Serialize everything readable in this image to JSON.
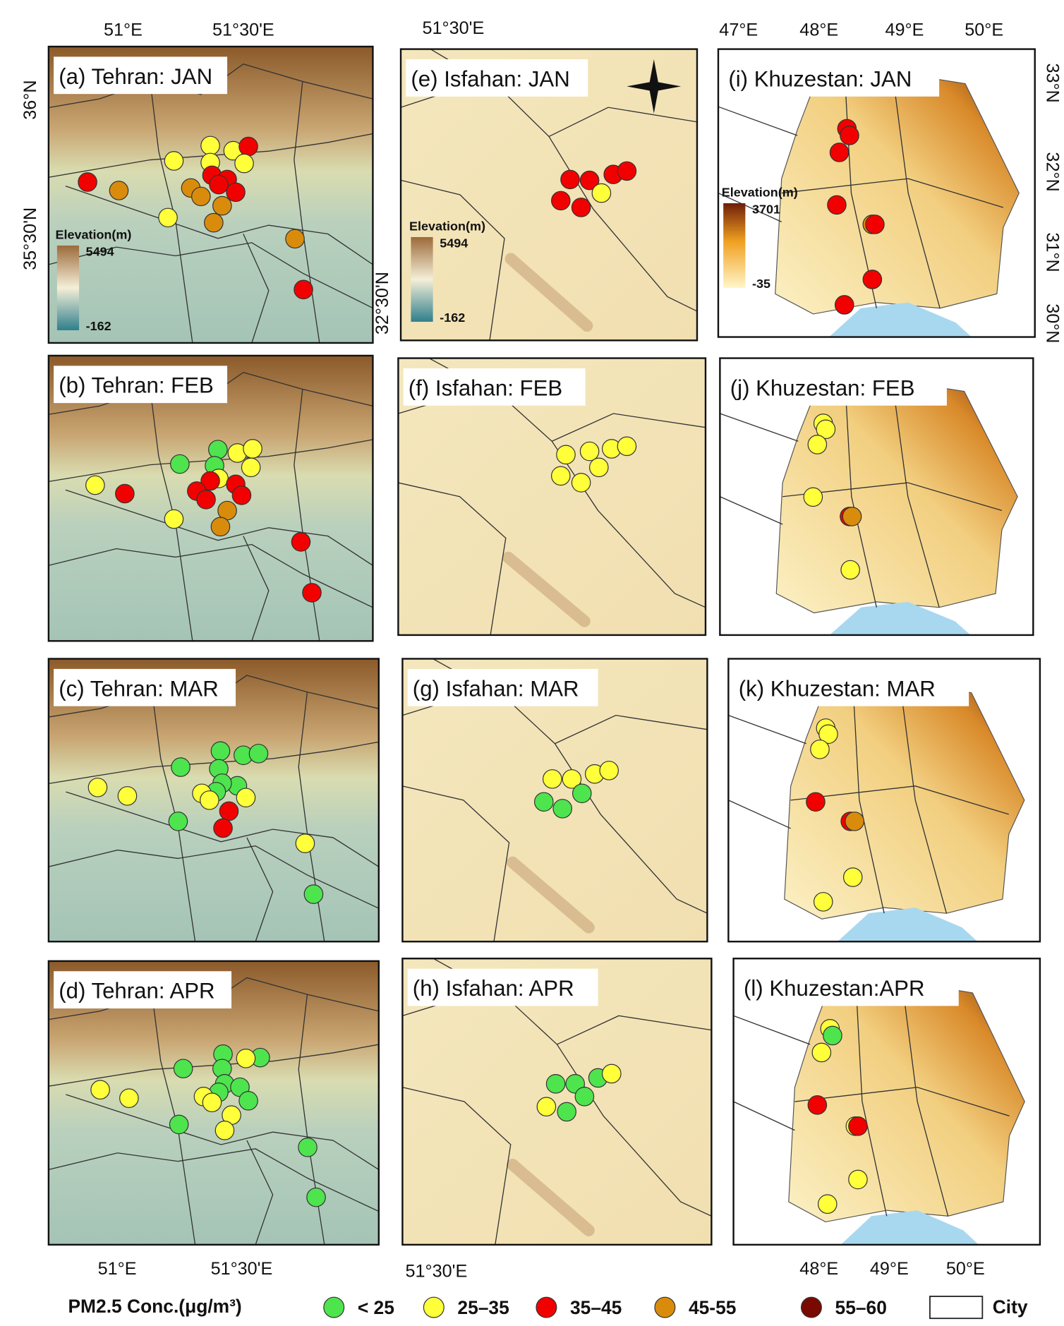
{
  "panels": [
    {
      "label": "(a) Tehran: JAN"
    },
    {
      "label": "(b) Tehran: FEB"
    },
    {
      "label": "(c) Tehran: MAR"
    },
    {
      "label": "(d) Tehran: APR"
    },
    {
      "label": "(e) Isfahan: JAN"
    },
    {
      "label": "(f) Isfahan: FEB"
    },
    {
      "label": "(g) Isfahan: MAR"
    },
    {
      "label": "(h) Isfahan: APR"
    },
    {
      "label": "(i) Khuzestan: JAN"
    },
    {
      "label": "(j) Khuzestan: FEB"
    },
    {
      "label": "(k) Khuzestan: MAR"
    },
    {
      "label": "(l) Khuzestan:APR"
    }
  ],
  "axes": {
    "top": [
      "51°E",
      "51°30'E",
      "51°30'E",
      "47°E",
      "48°E",
      "49°E",
      "50°E"
    ],
    "left": [
      "36°N",
      "35°30'N",
      "32°30'N"
    ],
    "right": [
      "33°N",
      "32°N",
      "31°N",
      "30°N"
    ],
    "bottom": [
      "51°E",
      "51°30'E",
      "51°30'E",
      "48°E",
      "49°E",
      "50°E"
    ]
  },
  "elevation_legends": [
    {
      "title": "Elevation(m)",
      "max": 5494,
      "min": -162
    },
    {
      "title": "Elevation(m)",
      "max": 5494,
      "min": -162
    },
    {
      "title": "Elevation(m)",
      "max": 3701,
      "min": -35
    }
  ],
  "legend": {
    "title": "PM2.5 Conc.(μg/m³)",
    "classes": [
      {
        "label": "< 25",
        "color": "#4ee44e"
      },
      {
        "label": "25–35",
        "color": "#ffff3a"
      },
      {
        "label": "35–45",
        "color": "#f20000"
      },
      {
        "label": "45-55",
        "color": "#d98c0c"
      },
      {
        "label": "55–60",
        "color": "#7a0a00"
      }
    ],
    "city": "City"
  }
}
